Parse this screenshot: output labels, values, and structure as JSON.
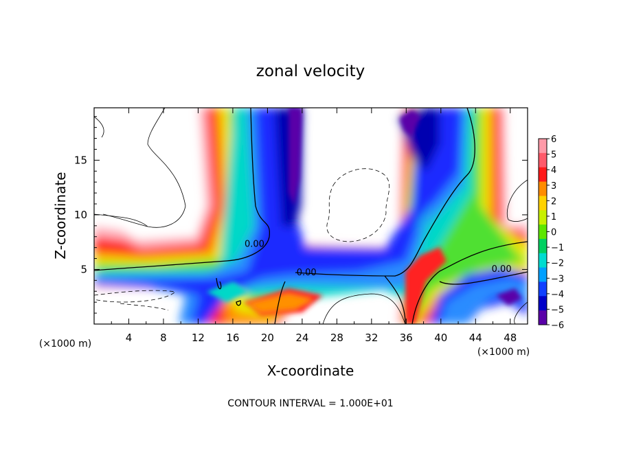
{
  "chart_data": {
    "type": "heatmap",
    "title": "zonal velocity",
    "xlabel": "X-coordinate",
    "ylabel": "Z-coordinate",
    "x_unit": "(×1000 m)",
    "x_unit_right": "(×1000 m)",
    "xlim": [
      0,
      50
    ],
    "ylim": [
      0,
      19.8
    ],
    "xticks": [
      4,
      8,
      12,
      16,
      20,
      24,
      28,
      32,
      36,
      40,
      44,
      48
    ],
    "yticks": [
      5,
      10,
      15
    ],
    "colorbar": {
      "ticks": [
        6,
        5,
        4,
        3,
        2,
        1,
        0,
        -1,
        -2,
        -3,
        -4,
        -5,
        -6
      ],
      "colors": [
        "#ff9aa8",
        "#ff5a6a",
        "#ff1a1a",
        "#ff8c00",
        "#ffd200",
        "#c8f000",
        "#5de600",
        "#00d060",
        "#00dcd0",
        "#00a0ff",
        "#1040ff",
        "#0000c8",
        "#5a00a8"
      ],
      "range": [
        -6,
        6
      ]
    },
    "contour_labels": [
      {
        "text": "0.00",
        "x": 18.5,
        "z": 7.2
      },
      {
        "text": "0.00",
        "x": 24.5,
        "z": 4.6
      },
      {
        "text": "0.00",
        "x": 47.0,
        "z": 4.9
      }
    ],
    "footer": "CONTOUR INTERVAL = 1.000E+01"
  }
}
